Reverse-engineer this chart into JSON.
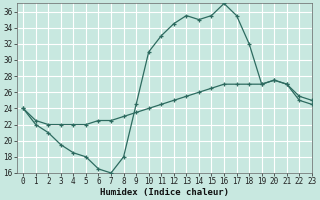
{
  "xlabel": "Humidex (Indice chaleur)",
  "bg_color": "#c8e8e0",
  "grid_color": "#ffffff",
  "line_color": "#2d6b60",
  "x_line1": [
    0,
    1,
    2,
    3,
    4,
    5,
    6,
    7,
    8,
    9,
    10,
    11,
    12,
    13,
    14,
    15,
    16,
    17,
    18,
    19,
    20,
    21,
    22,
    23
  ],
  "y_line1": [
    24,
    22,
    21,
    19.5,
    18.5,
    18,
    16.5,
    16,
    18,
    24.5,
    31,
    33,
    34.5,
    35.5,
    35,
    35.5,
    37,
    35.5,
    32,
    27,
    27.5,
    27,
    25,
    24.5
  ],
  "x_line2": [
    0,
    1,
    2,
    3,
    4,
    5,
    6,
    7,
    8,
    9,
    10,
    11,
    12,
    13,
    14,
    15,
    16,
    17,
    18,
    19,
    20,
    21,
    22,
    23
  ],
  "y_line2": [
    24,
    22.5,
    22,
    22,
    22,
    22,
    22.5,
    22.5,
    23,
    23.5,
    24,
    24.5,
    25,
    25.5,
    26,
    26.5,
    27,
    27,
    27,
    27,
    27.5,
    27,
    25.5,
    25
  ],
  "ylim": [
    16,
    37
  ],
  "yticks": [
    16,
    18,
    20,
    22,
    24,
    26,
    28,
    30,
    32,
    34,
    36
  ],
  "xlim": [
    -0.5,
    23
  ],
  "xticks": [
    0,
    1,
    2,
    3,
    4,
    5,
    6,
    7,
    8,
    9,
    10,
    11,
    12,
    13,
    14,
    15,
    16,
    17,
    18,
    19,
    20,
    21,
    22,
    23
  ],
  "tick_fontsize": 5.5,
  "xlabel_fontsize": 6.5,
  "xlabel_bold": true
}
